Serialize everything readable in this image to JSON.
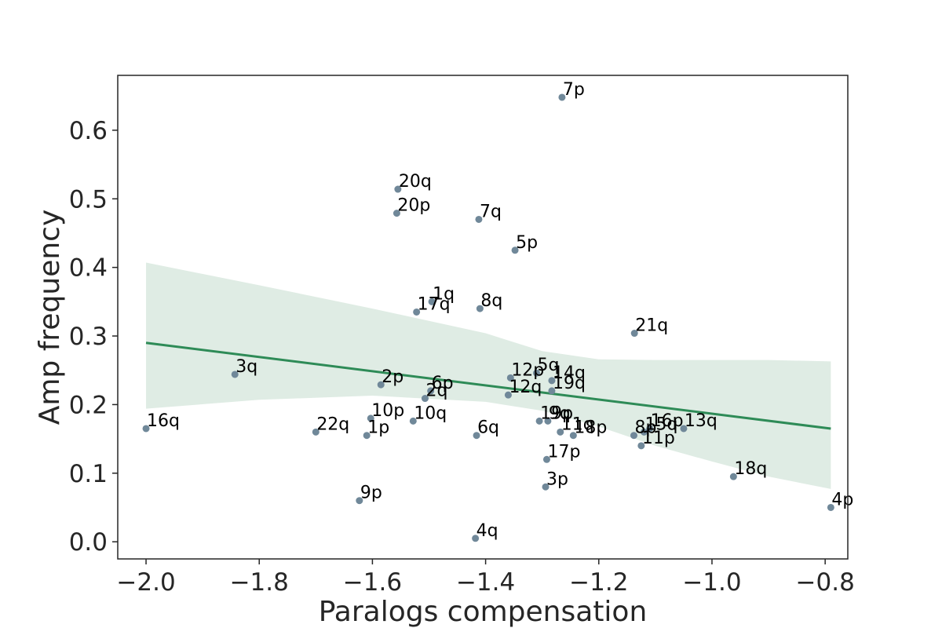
{
  "chart_data": {
    "type": "scatter",
    "title": "",
    "xlabel": "Paralogs compensation",
    "ylabel": "Amp frequency",
    "xlim": [
      -2.05,
      -0.76
    ],
    "ylim": [
      -0.025,
      0.68
    ],
    "x_ticks": [
      -2.0,
      -1.8,
      -1.6,
      -1.4,
      -1.2,
      -1.0,
      -0.8
    ],
    "x_tick_labels": [
      "−2.0",
      "−1.8",
      "−1.6",
      "−1.4",
      "−1.2",
      "−1.0",
      "−0.8"
    ],
    "y_ticks": [
      0.0,
      0.1,
      0.2,
      0.3,
      0.4,
      0.5,
      0.6
    ],
    "y_tick_labels": [
      "0.0",
      "0.1",
      "0.2",
      "0.3",
      "0.4",
      "0.5",
      "0.6"
    ],
    "grid": false,
    "colors": {
      "points": "#708899",
      "regression_line": "#2e8b57",
      "confidence_band": "#dfece4",
      "axes": "#262626"
    },
    "points": [
      {
        "label": "7p",
        "x": -1.265,
        "y": 0.648
      },
      {
        "label": "20q",
        "x": -1.555,
        "y": 0.514
      },
      {
        "label": "20p",
        "x": -1.557,
        "y": 0.479
      },
      {
        "label": "7q",
        "x": -1.412,
        "y": 0.47
      },
      {
        "label": "5p",
        "x": -1.348,
        "y": 0.425
      },
      {
        "label": "1q",
        "x": -1.495,
        "y": 0.35
      },
      {
        "label": "17q",
        "x": -1.522,
        "y": 0.335
      },
      {
        "label": "8q",
        "x": -1.41,
        "y": 0.34
      },
      {
        "label": "21q",
        "x": -1.137,
        "y": 0.304
      },
      {
        "label": "3q",
        "x": -1.843,
        "y": 0.244
      },
      {
        "label": "2p",
        "x": -1.585,
        "y": 0.229
      },
      {
        "label": "6p",
        "x": -1.497,
        "y": 0.22
      },
      {
        "label": "2q",
        "x": -1.507,
        "y": 0.209
      },
      {
        "label": "12p",
        "x": -1.356,
        "y": 0.239
      },
      {
        "label": "5q",
        "x": -1.31,
        "y": 0.246
      },
      {
        "label": "14q",
        "x": -1.283,
        "y": 0.235
      },
      {
        "label": "19q",
        "x": -1.283,
        "y": 0.22
      },
      {
        "label": "12q",
        "x": -1.36,
        "y": 0.214
      },
      {
        "label": "16q",
        "x": -2.0,
        "y": 0.165
      },
      {
        "label": "22q",
        "x": -1.7,
        "y": 0.16
      },
      {
        "label": "1p",
        "x": -1.61,
        "y": 0.155
      },
      {
        "label": "10p",
        "x": -1.603,
        "y": 0.18
      },
      {
        "label": "10q",
        "x": -1.528,
        "y": 0.176
      },
      {
        "label": "6q",
        "x": -1.416,
        "y": 0.155
      },
      {
        "label": "19p",
        "x": -1.305,
        "y": 0.176
      },
      {
        "label": "9q",
        "x": -1.29,
        "y": 0.176
      },
      {
        "label": "11q",
        "x": -1.268,
        "y": 0.16
      },
      {
        "label": "18p",
        "x": -1.245,
        "y": 0.155
      },
      {
        "label": "8p",
        "x": -1.138,
        "y": 0.155
      },
      {
        "label": "15q",
        "x": -1.12,
        "y": 0.16
      },
      {
        "label": "16p",
        "x": -1.11,
        "y": 0.165
      },
      {
        "label": "13q",
        "x": -1.05,
        "y": 0.165
      },
      {
        "label": "11p",
        "x": -1.125,
        "y": 0.14
      },
      {
        "label": "17p",
        "x": -1.292,
        "y": 0.12
      },
      {
        "label": "3p",
        "x": -1.294,
        "y": 0.08
      },
      {
        "label": "18q",
        "x": -0.962,
        "y": 0.095
      },
      {
        "label": "9p",
        "x": -1.623,
        "y": 0.06
      },
      {
        "label": "4q",
        "x": -1.418,
        "y": 0.005
      },
      {
        "label": "4p",
        "x": -0.79,
        "y": 0.05
      }
    ],
    "regression": {
      "line": [
        [
          -2.0,
          0.29
        ],
        [
          -0.79,
          0.165
        ]
      ],
      "band_upper": [
        [
          -2.0,
          0.407
        ],
        [
          -1.8,
          0.374
        ],
        [
          -1.6,
          0.34
        ],
        [
          -1.4,
          0.304
        ],
        [
          -1.3,
          0.278
        ],
        [
          -1.2,
          0.266
        ],
        [
          -1.1,
          0.265
        ],
        [
          -1.0,
          0.265
        ],
        [
          -0.9,
          0.265
        ],
        [
          -0.79,
          0.263
        ]
      ],
      "band_lower": [
        [
          -2.0,
          0.194
        ],
        [
          -1.8,
          0.207
        ],
        [
          -1.6,
          0.213
        ],
        [
          -1.4,
          0.204
        ],
        [
          -1.3,
          0.191
        ],
        [
          -1.2,
          0.168
        ],
        [
          -1.1,
          0.14
        ],
        [
          -1.0,
          0.117
        ],
        [
          -0.9,
          0.095
        ],
        [
          -0.79,
          0.077
        ]
      ]
    }
  }
}
